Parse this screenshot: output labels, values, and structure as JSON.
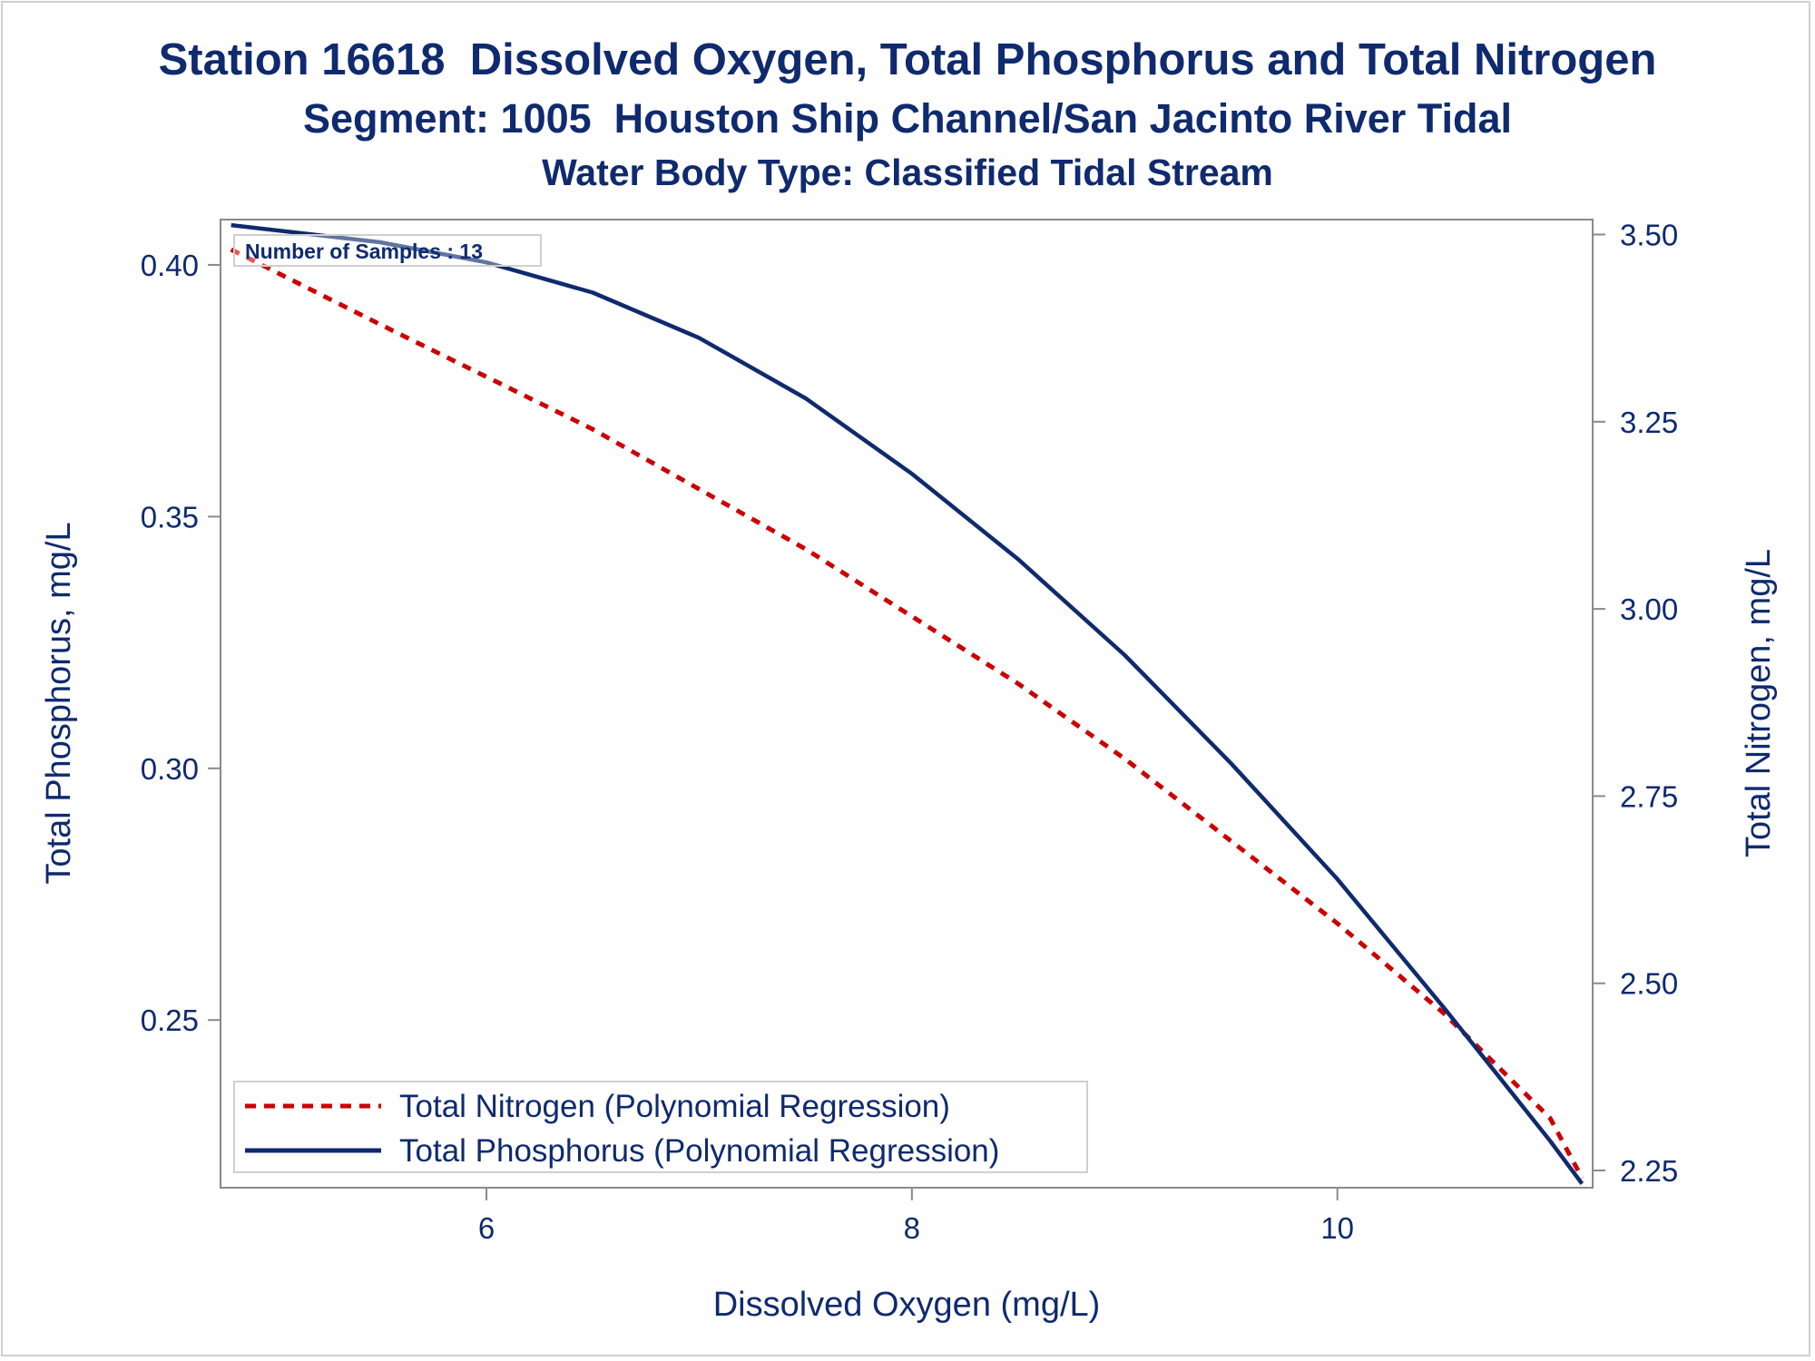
{
  "chart_data": {
    "type": "line",
    "title": "Station 16618  Dissolved Oxygen, Total Phosphorus and Total Nitrogen",
    "subtitle": "Segment: 1005  Houston Ship Channel/San Jacinto River Tidal",
    "subtitle2": "Water Body Type: Classified Tidal Stream",
    "xlabel": "Dissolved Oxygen (mg/L)",
    "ylabel": "Total Phosphorus, mg/L",
    "y2label": "Total Nitrogen, mg/L",
    "xlim": [
      4.75,
      11.2
    ],
    "ylim": [
      0.2167,
      0.409
    ],
    "y2lim": [
      2.227,
      3.52
    ],
    "xticks": [
      6,
      8,
      10
    ],
    "yticks": [
      0.25,
      0.3,
      0.35,
      0.4
    ],
    "y2ticks": [
      2.25,
      2.5,
      2.75,
      3.0,
      3.25,
      3.5
    ],
    "xtick_labels": [
      "6",
      "8",
      "10"
    ],
    "ytick_labels": [
      "0.25",
      "0.30",
      "0.35",
      "0.40"
    ],
    "y2tick_labels": [
      "2.25",
      "2.50",
      "2.75",
      "3.00",
      "3.25",
      "3.50"
    ],
    "annotation": "Number of Samples : 13",
    "legend_position": "bottom-left",
    "grid": false,
    "series": [
      {
        "name": "Total Nitrogen (Polynomial Regression)",
        "axis": "right",
        "style": "dashed",
        "color": "#cc0000",
        "x": [
          4.8,
          5.5,
          6.0,
          6.5,
          7.0,
          7.5,
          8.0,
          8.5,
          9.0,
          9.5,
          10.0,
          10.5,
          11.0,
          11.15
        ],
        "values": [
          3.48,
          3.38,
          3.31,
          3.24,
          3.16,
          3.08,
          2.99,
          2.9,
          2.8,
          2.69,
          2.58,
          2.46,
          2.32,
          2.24
        ]
      },
      {
        "name": "Total Phosphorus (Polynomial Regression)",
        "axis": "left",
        "style": "solid",
        "color": "#0f2a6e",
        "x": [
          4.8,
          5.5,
          6.0,
          6.5,
          7.0,
          7.5,
          8.0,
          8.5,
          9.0,
          9.5,
          10.0,
          10.5,
          11.0,
          11.15
        ],
        "values": [
          0.4079,
          0.4045,
          0.4005,
          0.3945,
          0.3855,
          0.3735,
          0.3585,
          0.3415,
          0.3225,
          0.301,
          0.278,
          0.2525,
          0.226,
          0.2175
        ]
      }
    ]
  }
}
